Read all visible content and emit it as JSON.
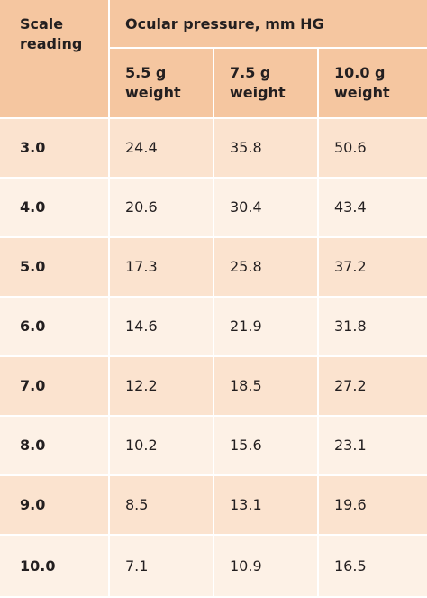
{
  "table": {
    "header": {
      "row_label": "Scale reading",
      "group_label": "Ocular pressure, mm HG",
      "columns": [
        "5.5 g weight",
        "7.5 g weight",
        "10.0 g weight"
      ]
    },
    "rows": [
      [
        "3.0",
        "24.4",
        "35.8",
        "50.6"
      ],
      [
        "4.0",
        "20.6",
        "30.4",
        "43.4"
      ],
      [
        "5.0",
        "17.3",
        "25.8",
        "37.2"
      ],
      [
        "6.0",
        "14.6",
        "21.9",
        "31.8"
      ],
      [
        "7.0",
        "12.2",
        "18.5",
        "27.2"
      ],
      [
        "8.0",
        "10.2",
        "15.6",
        "23.1"
      ],
      [
        "9.0",
        "8.5",
        "13.1",
        "19.6"
      ],
      [
        "10.0",
        "7.1",
        "10.9",
        "16.5"
      ]
    ]
  }
}
